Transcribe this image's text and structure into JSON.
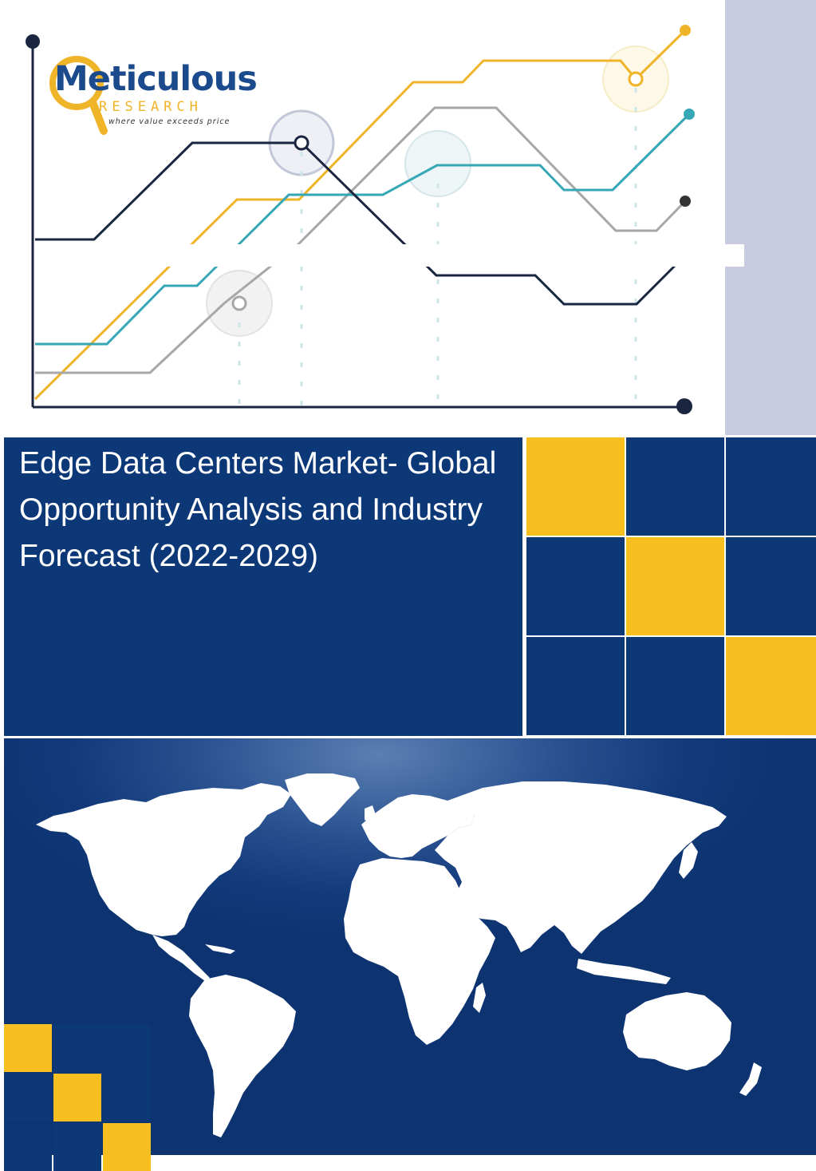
{
  "logo": {
    "name": "Meticulous",
    "subname": "RESEARCH",
    "tagline": "where value exceeds price"
  },
  "cover": {
    "title": "Edge Data Centers Market- Global Opportunity Analysis and Industry Forecast (2022-2029)"
  },
  "colors": {
    "navy": "#0d3878",
    "yellow": "#f7bf1f",
    "teal": "#35a7b5",
    "gray": "#a7a7a7",
    "dark_line": "#1a2540",
    "lavender": "#c9cce0"
  },
  "decor": {
    "grid_pattern": [
      "yellow-blue-blue",
      "blue-yellow-blue",
      "blue-blue-yellow"
    ],
    "corner_pattern": [
      "yellow-blue-blue",
      "blue-yellow-blue",
      "blue-blue-yellow"
    ],
    "icons": [
      "line-graph-illustration",
      "world-map-silhouette",
      "magnifier-logo-icon"
    ]
  }
}
